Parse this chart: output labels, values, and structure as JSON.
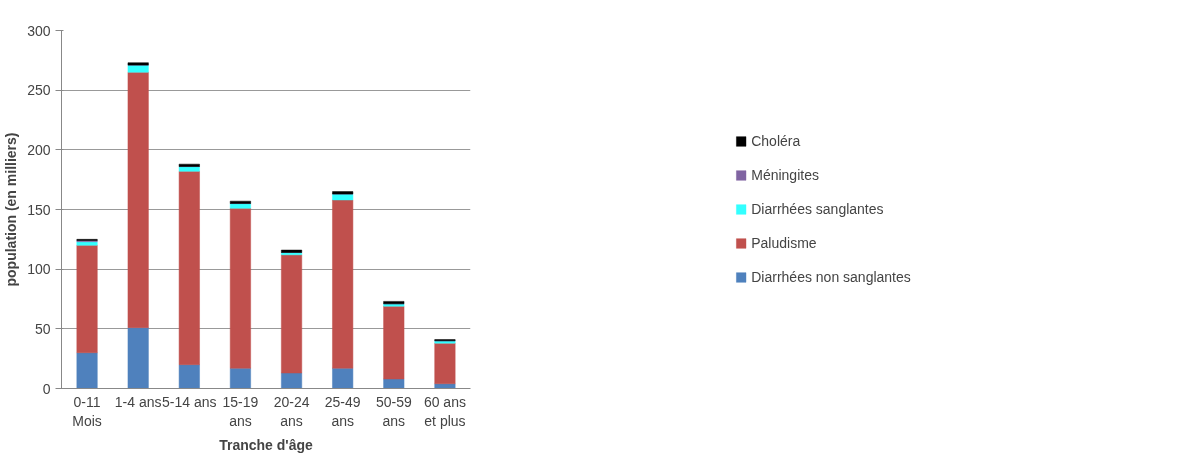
{
  "chart_data": {
    "type": "bar",
    "stacked": true,
    "xlabel": "Tranche d'âge",
    "ylabel": "population (en milliers)",
    "categories": [
      "0-11 Mois",
      "1-4 ans",
      "5-14 ans",
      "15-19 ans",
      "20-24 ans",
      "25-49 ans",
      "50-59 ans",
      "60 ans et plus"
    ],
    "series": [
      {
        "name": "Diarrhées non sanglantes",
        "color": "#4f81bd",
        "values": [
          30,
          51,
          20,
          17,
          13,
          17,
          8,
          4
        ]
      },
      {
        "name": "Paludisme",
        "color": "#c0504d",
        "values": [
          90,
          214,
          162,
          134,
          99,
          141,
          61,
          34
        ]
      },
      {
        "name": "Diarrhées sanglantes",
        "color": "#33ffff",
        "values": [
          3,
          6,
          4,
          4,
          2,
          5,
          2,
          2
        ]
      },
      {
        "name": "Méningites",
        "color": "#8064a2",
        "values": [
          1,
          0,
          0,
          0,
          0,
          0,
          0,
          0
        ]
      },
      {
        "name": "Choléra",
        "color": "#000000",
        "values": [
          1,
          2,
          2,
          2,
          2,
          2,
          2,
          1
        ]
      }
    ],
    "ylim": [
      0,
      300
    ],
    "yticks": [
      0,
      50,
      100,
      150,
      200,
      250,
      300
    ],
    "grid": "y",
    "legend": "right"
  }
}
